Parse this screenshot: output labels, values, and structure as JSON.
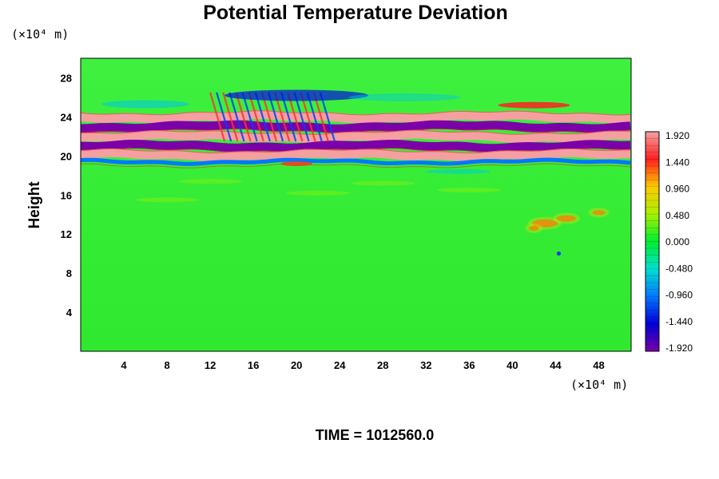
{
  "chart_data": {
    "type": "heatmap",
    "title": "Potential Temperature Deviation",
    "ylabel": "Height",
    "xunit": "(×10⁴ m)",
    "yunit": "(×10⁴ m)",
    "xlim": [
      0,
      51
    ],
    "ylim": [
      0,
      30
    ],
    "xticks": [
      "4",
      "8",
      "12",
      "16",
      "20",
      "24",
      "28",
      "32",
      "36",
      "40",
      "44",
      "48"
    ],
    "yticks": [
      "4",
      "8",
      "12",
      "16",
      "20",
      "24",
      "28"
    ],
    "colorbar": {
      "min": -1.92,
      "max": 1.92,
      "labels": [
        "1.920",
        "1.440",
        "0.960",
        "0.480",
        "0.000",
        "-0.480",
        "-0.960",
        "-1.440",
        "-1.920"
      ]
    },
    "bands": [
      {
        "y": 24.0,
        "value": 1.9
      },
      {
        "y": 23.0,
        "value": -1.9
      },
      {
        "y": 22.0,
        "value": 1.9
      },
      {
        "y": 21.0,
        "value": -1.9
      },
      {
        "y": 20.1,
        "value": 1.9
      },
      {
        "y": 19.4,
        "value": -0.8
      }
    ],
    "footer": "TIME = 1012560.0"
  }
}
